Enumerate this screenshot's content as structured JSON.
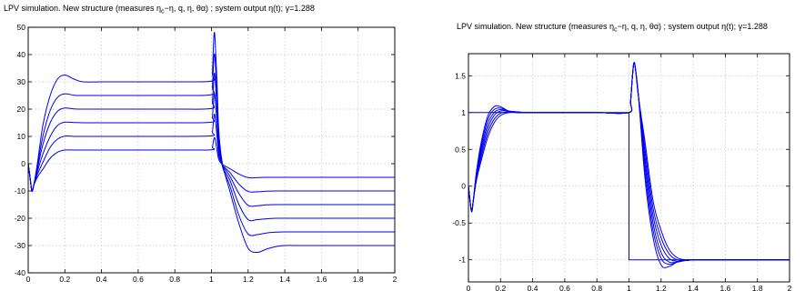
{
  "colors": {
    "series": "#0000ee",
    "grid": "#b8b8b8",
    "axes": "#000000"
  },
  "chart_data": [
    {
      "type": "line",
      "title_parts": [
        "LPV simulation. New structure (measures η",
        "c",
        "−η, q, η, θα) ; system output η(t); γ=1.288"
      ],
      "xlabel": "",
      "ylabel": "",
      "xlim": [
        0,
        2
      ],
      "ylim": [
        -40,
        50
      ],
      "grid": true,
      "x_ticks": [
        "0",
        "0.2",
        "0.4",
        "0.6",
        "0.8",
        "1",
        "1.2",
        "1.4",
        "1.6",
        "1.8",
        "2"
      ],
      "y_ticks": [
        "-40",
        "-30",
        "-20",
        "-10",
        "0",
        "10",
        "20",
        "30",
        "40",
        "50"
      ],
      "x": [
        0,
        0.01,
        0.02,
        0.03,
        0.05,
        0.08,
        0.12,
        0.16,
        0.2,
        0.25,
        0.3,
        0.4,
        0.6,
        0.8,
        1.0,
        1.005,
        1.01,
        1.015,
        1.02,
        1.03,
        1.04,
        1.06,
        1.1,
        1.15,
        1.2,
        1.25,
        1.3,
        1.35,
        1.4,
        1.5,
        1.7,
        2.0
      ],
      "series": [
        {
          "values": [
            0,
            -5,
            -10,
            -8,
            0,
            14,
            25,
            31,
            32.5,
            31,
            30,
            30,
            30,
            30,
            30.3,
            33,
            42,
            48,
            45,
            30,
            12,
            0,
            -10,
            -22,
            -31,
            -32.5,
            -31.3,
            -30.4,
            -30,
            -30,
            -30,
            -30
          ]
        },
        {
          "values": [
            0,
            -5,
            -10,
            -8,
            -1,
            10,
            19.5,
            24.3,
            25.6,
            25.1,
            25,
            25,
            25,
            25,
            25.3,
            28,
            35,
            40,
            38,
            25,
            9,
            -1,
            -8,
            -19,
            -25.8,
            -26,
            -25.4,
            -25.1,
            -25,
            -25,
            -25,
            -25
          ]
        },
        {
          "values": [
            0,
            -5,
            -10,
            -8,
            -2,
            7,
            15,
            19.2,
            20.4,
            20.1,
            20,
            20,
            20,
            20,
            20.2,
            22.5,
            28,
            33,
            31,
            20,
            7,
            -1,
            -6,
            -15,
            -20.5,
            -20.5,
            -20.2,
            -20,
            -20,
            -20,
            -20,
            -20
          ]
        },
        {
          "values": [
            0,
            -5,
            -10,
            -8,
            -3,
            3.5,
            10,
            14,
            15.2,
            15.1,
            15,
            15,
            15,
            15,
            15.2,
            17,
            21.5,
            25.5,
            24,
            15,
            5,
            -0.5,
            -4.5,
            -11,
            -15.3,
            -15.4,
            -15.1,
            -15,
            -15,
            -15,
            -15,
            -15
          ]
        },
        {
          "values": [
            0,
            -5,
            -10,
            -8,
            -4,
            0.5,
            6,
            9,
            10.1,
            10,
            10,
            10,
            10,
            10,
            10.2,
            11.5,
            15,
            18,
            17,
            10,
            3,
            -0.5,
            -3.2,
            -7.5,
            -10.2,
            -10.3,
            -10.1,
            -10,
            -10,
            -10,
            -10,
            -10
          ]
        },
        {
          "values": [
            0,
            -5,
            -10,
            -8,
            -5,
            -2,
            2,
            4.2,
            5,
            5,
            5,
            5,
            5,
            5,
            5.1,
            6,
            8,
            9.5,
            9,
            5,
            1.5,
            -0.3,
            -1.8,
            -3.8,
            -5.1,
            -5.1,
            -5,
            -5,
            -5,
            -5,
            -5,
            -5
          ]
        }
      ]
    },
    {
      "type": "line",
      "title_parts": [
        "LPV simulation. New structure (measures η",
        "c",
        "−η, q, η, θα) ; system output η(t); γ=1.288"
      ],
      "xlabel": "",
      "ylabel": "",
      "xlim": [
        0,
        2
      ],
      "ylim": [
        -1.3,
        1.8
      ],
      "grid": true,
      "x_ticks": [
        "0",
        "0.2",
        "0.4",
        "0.6",
        "0.8",
        "1",
        "1.2",
        "1.4",
        "1.6",
        "1.8",
        "2"
      ],
      "y_ticks": [
        "-1",
        "-0.5",
        "0",
        "0.5",
        "1",
        "1.5"
      ],
      "x": [
        0,
        0.01,
        0.02,
        0.03,
        0.05,
        0.08,
        0.12,
        0.16,
        0.2,
        0.25,
        0.3,
        0.35,
        0.4,
        0.6,
        0.8,
        1.0,
        1.01,
        1.02,
        1.03,
        1.04,
        1.06,
        1.1,
        1.15,
        1.2,
        1.25,
        1.3,
        1.35,
        1.4,
        1.45,
        1.5,
        1.7,
        2.0
      ],
      "series": [
        {
          "values": [
            0,
            -0.2,
            -0.35,
            -0.2,
            0.2,
            0.6,
            0.95,
            1.08,
            1.08,
            1.02,
            1.0,
            1.0,
            1.0,
            1.0,
            1.0,
            1.0,
            1.15,
            1.45,
            1.67,
            1.6,
            1.2,
            0.1,
            -0.7,
            -1.07,
            -1.09,
            -1.03,
            -1.0,
            -1.0,
            -1.0,
            -1.0,
            -1.0,
            -1.0
          ]
        },
        {
          "values": [
            0,
            -0.2,
            -0.35,
            -0.2,
            0.18,
            0.55,
            0.9,
            1.04,
            1.06,
            1.02,
            1.0,
            1.0,
            1.0,
            1.0,
            1.0,
            1.0,
            1.15,
            1.45,
            1.67,
            1.6,
            1.2,
            0.2,
            -0.6,
            -0.98,
            -1.06,
            -1.03,
            -1.01,
            -1.0,
            -1.0,
            -1.0,
            -1.0,
            -1.0
          ]
        },
        {
          "values": [
            0,
            -0.2,
            -0.35,
            -0.2,
            0.15,
            0.5,
            0.84,
            1.0,
            1.04,
            1.02,
            1.0,
            1.0,
            1.0,
            1.0,
            1.0,
            1.0,
            1.15,
            1.45,
            1.67,
            1.6,
            1.2,
            0.3,
            -0.5,
            -0.9,
            -1.03,
            -1.03,
            -1.01,
            -1.0,
            -1.0,
            -1.0,
            -1.0,
            -1.0
          ]
        },
        {
          "values": [
            0,
            -0.2,
            -0.35,
            -0.2,
            0.12,
            0.45,
            0.78,
            0.96,
            1.02,
            1.02,
            1.01,
            1.0,
            1.0,
            1.0,
            1.0,
            1.0,
            1.15,
            1.45,
            1.67,
            1.6,
            1.2,
            0.4,
            -0.4,
            -0.8,
            -0.98,
            -1.02,
            -1.01,
            -1.0,
            -1.0,
            -1.0,
            -1.0,
            -1.0
          ]
        },
        {
          "values": [
            0,
            -0.2,
            -0.35,
            -0.2,
            0.1,
            0.4,
            0.72,
            0.91,
            0.99,
            1.01,
            1.01,
            1.0,
            1.0,
            1.0,
            1.0,
            1.0,
            1.15,
            1.45,
            1.67,
            1.6,
            1.2,
            0.5,
            -0.3,
            -0.7,
            -0.92,
            -1.0,
            -1.01,
            -1.0,
            -1.0,
            -1.0,
            -1.0,
            -1.0
          ]
        },
        {
          "values": [
            0,
            -0.2,
            -0.35,
            -0.2,
            0.08,
            0.35,
            0.66,
            0.86,
            0.96,
            1.0,
            1.01,
            1.0,
            1.0,
            1.0,
            1.0,
            1.0,
            1.15,
            1.45,
            1.67,
            1.6,
            1.2,
            0.6,
            -0.2,
            -0.6,
            -0.86,
            -0.97,
            -1.0,
            -1.0,
            -1.0,
            -1.0,
            -1.0,
            -1.0
          ]
        }
      ],
      "reference_step": {
        "x": [
          0,
          1.0,
          1.0,
          2.0
        ],
        "values": [
          1,
          1,
          -1,
          -1
        ]
      }
    }
  ]
}
